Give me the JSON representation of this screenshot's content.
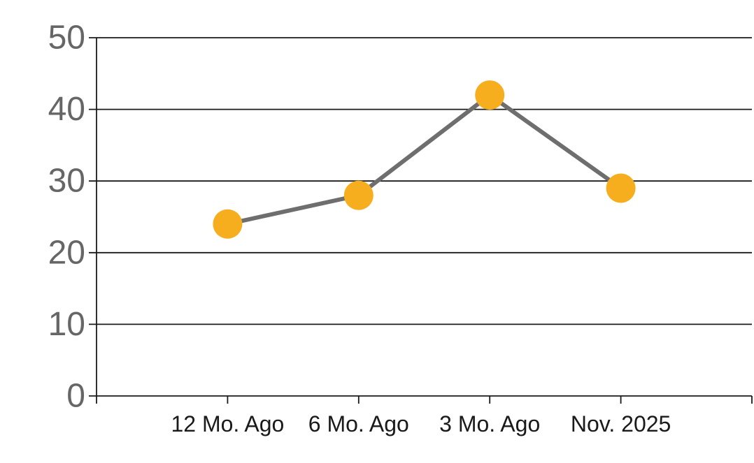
{
  "page": {
    "background": "#ffffff"
  },
  "chart_data": {
    "type": "line",
    "categories": [
      "12 Mo. Ago",
      "6 Mo. Ago",
      "3 Mo. Ago",
      "Nov. 2025"
    ],
    "values": [
      24,
      28,
      42,
      29
    ],
    "title": "",
    "xlabel": "",
    "ylabel": "",
    "ylim": [
      0,
      50
    ],
    "yticks": [
      0,
      10,
      20,
      30,
      40,
      50
    ],
    "grid": true,
    "legend": false,
    "marker_shape": "circle",
    "colors": {
      "marker": "#F6AE1E",
      "line": "#6E6E6E",
      "grid": "#1a1a1a",
      "axis": "#1a1a1a",
      "y_tick_label": "#666666",
      "x_tick_label": "#1a1a1a",
      "background": "#ffffff"
    }
  }
}
